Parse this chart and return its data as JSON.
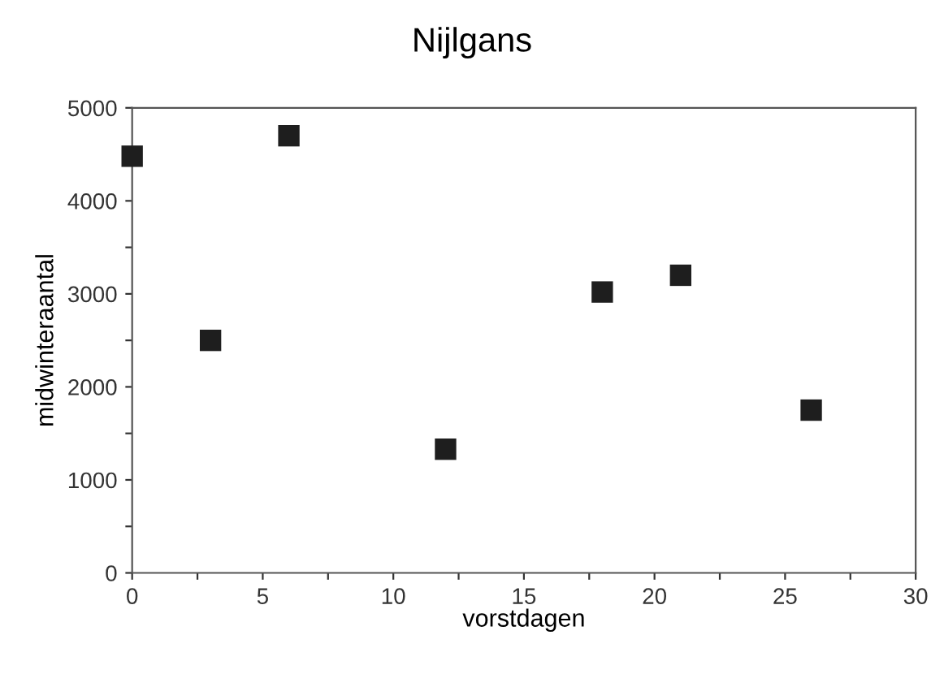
{
  "chart_data": {
    "type": "scatter",
    "title": "Nijlgans",
    "xlabel": "vorstdagen",
    "ylabel": "midwinteraantal",
    "x": [
      0,
      3,
      6,
      12,
      18,
      21,
      26
    ],
    "values": [
      4480,
      2500,
      4700,
      1330,
      3020,
      3200,
      1750
    ],
    "color": "#1e1e1e",
    "marker": "square",
    "xlim": [
      0,
      30
    ],
    "ylim": [
      0,
      5000
    ],
    "xticks": [
      0,
      {
        "value": 2.5,
        "label": null
      },
      5,
      {
        "value": 7.5,
        "label": null
      },
      10,
      {
        "value": 12.5,
        "label": null
      },
      15,
      {
        "value": 17.5,
        "label": null
      },
      20,
      {
        "value": 22.5,
        "label": null
      },
      25,
      {
        "value": 27.5,
        "label": null
      },
      30
    ],
    "yticks": [
      0,
      {
        "value": 500,
        "label": null
      },
      1000,
      {
        "value": 1500,
        "label": null
      },
      2000,
      {
        "value": 2500,
        "label": null
      },
      3000,
      {
        "value": 3500,
        "label": null
      },
      4000,
      {
        "value": 4500,
        "label": null
      },
      5000
    ],
    "grid": false,
    "legend": false
  }
}
